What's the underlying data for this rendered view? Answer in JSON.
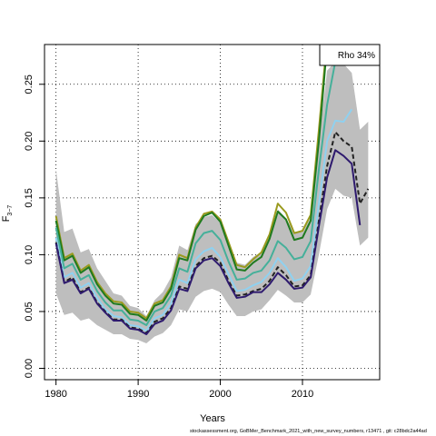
{
  "chart_data": {
    "type": "line",
    "xlabel": "Years",
    "ylabel": "F",
    "ylabel_sub": "3−7",
    "xlim": [
      1978.6,
      2019.4
    ],
    "ylim": [
      -0.01,
      0.285
    ],
    "x_ticks": [
      1980,
      1990,
      2000,
      2010
    ],
    "y_ticks": [
      0.0,
      0.05,
      0.1,
      0.15,
      0.2,
      0.25
    ],
    "y_tick_labels": [
      "0.00",
      "0.05",
      "0.10",
      "0.15",
      "0.20",
      "0.25"
    ],
    "grid": true,
    "legend_text": "Rho 34%",
    "legend_position": "top-right",
    "footer": "stockassessment.org, GoBMer_Benchmark_2021_with_new_survey_numbers, r13471 , git: c28bdc2a44ad",
    "band": {
      "color": "#bebebe",
      "x": [
        1980,
        1981,
        1982,
        1983,
        1984,
        1985,
        1986,
        1987,
        1988,
        1989,
        1990,
        1991,
        1992,
        1993,
        1994,
        1995,
        1996,
        1997,
        1998,
        1999,
        2000,
        2001,
        2002,
        2003,
        2004,
        2005,
        2006,
        2007,
        2008,
        2009,
        2010,
        2011,
        2012,
        2013,
        2014,
        2015,
        2016,
        2017,
        2018
      ],
      "upper": [
        0.175,
        0.12,
        0.123,
        0.102,
        0.105,
        0.088,
        0.077,
        0.066,
        0.064,
        0.055,
        0.053,
        0.046,
        0.06,
        0.067,
        0.08,
        0.108,
        0.104,
        0.127,
        0.133,
        0.135,
        0.128,
        0.11,
        0.093,
        0.091,
        0.098,
        0.102,
        0.116,
        0.14,
        0.132,
        0.12,
        0.12,
        0.133,
        0.2,
        0.262,
        0.27,
        0.268,
        0.26,
        0.21,
        0.217
      ],
      "lower": [
        0.066,
        0.047,
        0.049,
        0.042,
        0.044,
        0.038,
        0.034,
        0.03,
        0.03,
        0.026,
        0.025,
        0.022,
        0.028,
        0.031,
        0.038,
        0.052,
        0.05,
        0.063,
        0.068,
        0.07,
        0.067,
        0.056,
        0.046,
        0.046,
        0.05,
        0.052,
        0.06,
        0.069,
        0.064,
        0.058,
        0.058,
        0.065,
        0.1,
        0.14,
        0.158,
        0.152,
        0.15,
        0.108,
        0.115
      ]
    },
    "series": [
      {
        "color": "#9a9a1e",
        "style": "solid",
        "x": [
          1980,
          1981,
          1982,
          1983,
          1984,
          1985,
          1986,
          1987,
          1988,
          1989,
          1990,
          1991,
          1992,
          1993,
          1994,
          1995,
          1996,
          1997,
          1998,
          1999,
          2000,
          2001,
          2002,
          2003,
          2004,
          2005,
          2006,
          2007,
          2008,
          2009,
          2010,
          2011,
          2012,
          2013
        ],
        "values": [
          0.134,
          0.097,
          0.101,
          0.086,
          0.091,
          0.076,
          0.066,
          0.059,
          0.058,
          0.05,
          0.049,
          0.044,
          0.057,
          0.06,
          0.072,
          0.1,
          0.097,
          0.124,
          0.136,
          0.138,
          0.131,
          0.111,
          0.091,
          0.089,
          0.096,
          0.102,
          0.118,
          0.145,
          0.137,
          0.119,
          0.121,
          0.135,
          0.21,
          0.29
        ]
      },
      {
        "color": "#1f7a1f",
        "style": "solid",
        "x": [
          1980,
          1981,
          1982,
          1983,
          1984,
          1985,
          1986,
          1987,
          1988,
          1989,
          1990,
          1991,
          1992,
          1993,
          1994,
          1995,
          1996,
          1997,
          1998,
          1999,
          2000,
          2001,
          2002,
          2003,
          2004,
          2005,
          2006,
          2007,
          2008,
          2009,
          2010,
          2011,
          2012,
          2013
        ],
        "values": [
          0.13,
          0.095,
          0.099,
          0.084,
          0.089,
          0.074,
          0.064,
          0.057,
          0.056,
          0.048,
          0.047,
          0.042,
          0.055,
          0.058,
          0.07,
          0.097,
          0.095,
          0.122,
          0.134,
          0.137,
          0.129,
          0.108,
          0.087,
          0.086,
          0.093,
          0.098,
          0.114,
          0.138,
          0.131,
          0.113,
          0.115,
          0.13,
          0.2,
          0.285
        ]
      },
      {
        "color": "#45b09a",
        "style": "solid",
        "x": [
          1980,
          1981,
          1982,
          1983,
          1984,
          1985,
          1986,
          1987,
          1988,
          1989,
          1990,
          1991,
          1992,
          1993,
          1994,
          1995,
          1996,
          1997,
          1998,
          1999,
          2000,
          2001,
          2002,
          2003,
          2004,
          2005,
          2006,
          2007,
          2008,
          2009,
          2010,
          2011,
          2012,
          2013,
          2014,
          2015
        ],
        "values": [
          0.124,
          0.088,
          0.092,
          0.078,
          0.082,
          0.068,
          0.058,
          0.051,
          0.051,
          0.043,
          0.042,
          0.038,
          0.05,
          0.053,
          0.064,
          0.088,
          0.085,
          0.11,
          0.119,
          0.121,
          0.113,
          0.094,
          0.078,
          0.079,
          0.084,
          0.086,
          0.095,
          0.112,
          0.106,
          0.096,
          0.098,
          0.112,
          0.175,
          0.232,
          0.27,
          0.29
        ]
      },
      {
        "color": "#8fd1f0",
        "style": "solid",
        "x": [
          1980,
          1981,
          1982,
          1983,
          1984,
          1985,
          1986,
          1987,
          1988,
          1989,
          1990,
          1991,
          1992,
          1993,
          1994,
          1995,
          1996,
          1997,
          1998,
          1999,
          2000,
          2001,
          2002,
          2003,
          2004,
          2005,
          2006,
          2007,
          2008,
          2009,
          2010,
          2011,
          2012,
          2013,
          2014,
          2015,
          2016
        ],
        "values": [
          0.115,
          0.08,
          0.084,
          0.071,
          0.075,
          0.062,
          0.052,
          0.046,
          0.045,
          0.038,
          0.037,
          0.033,
          0.044,
          0.047,
          0.057,
          0.078,
          0.075,
          0.096,
          0.103,
          0.106,
          0.098,
          0.083,
          0.068,
          0.069,
          0.073,
          0.076,
          0.084,
          0.097,
          0.089,
          0.077,
          0.079,
          0.09,
          0.145,
          0.2,
          0.218,
          0.217,
          0.228
        ]
      },
      {
        "color": "#222222",
        "style": "dashed",
        "x": [
          1980,
          1981,
          1982,
          1983,
          1984,
          1985,
          1986,
          1987,
          1988,
          1989,
          1990,
          1991,
          1992,
          1993,
          1994,
          1995,
          1996,
          1997,
          1998,
          1999,
          2000,
          2001,
          2002,
          2003,
          2004,
          2005,
          2006,
          2007,
          2008,
          2009,
          2010,
          2011,
          2012,
          2013,
          2014,
          2015,
          2016,
          2017,
          2018
        ],
        "values": [
          0.111,
          0.076,
          0.08,
          0.067,
          0.071,
          0.058,
          0.05,
          0.043,
          0.043,
          0.036,
          0.035,
          0.031,
          0.041,
          0.044,
          0.053,
          0.072,
          0.07,
          0.09,
          0.097,
          0.099,
          0.093,
          0.077,
          0.064,
          0.065,
          0.068,
          0.07,
          0.077,
          0.089,
          0.082,
          0.072,
          0.073,
          0.082,
          0.13,
          0.178,
          0.208,
          0.2,
          0.195,
          0.145,
          0.158
        ]
      },
      {
        "color": "#2e1a6e",
        "style": "solid",
        "x": [
          1980,
          1981,
          1982,
          1983,
          1984,
          1985,
          1986,
          1987,
          1988,
          1989,
          1990,
          1991,
          1992,
          1993,
          1994,
          1995,
          1996,
          1997,
          1998,
          1999,
          2000,
          2001,
          2002,
          2003,
          2004,
          2005,
          2006,
          2007,
          2008,
          2009,
          2010,
          2011,
          2012,
          2013,
          2014,
          2015,
          2016,
          2017
        ],
        "values": [
          0.11,
          0.075,
          0.078,
          0.066,
          0.07,
          0.057,
          0.049,
          0.042,
          0.042,
          0.035,
          0.034,
          0.03,
          0.039,
          0.042,
          0.051,
          0.07,
          0.068,
          0.088,
          0.095,
          0.097,
          0.09,
          0.075,
          0.062,
          0.063,
          0.067,
          0.067,
          0.074,
          0.084,
          0.078,
          0.07,
          0.071,
          0.08,
          0.125,
          0.168,
          0.192,
          0.187,
          0.18,
          0.126
        ]
      }
    ]
  }
}
